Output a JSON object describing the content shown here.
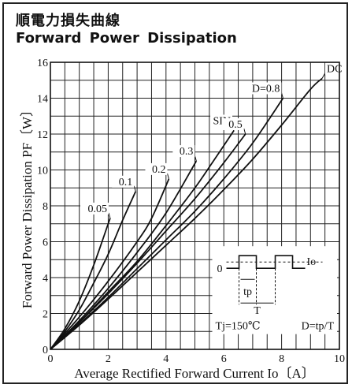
{
  "titles": {
    "japanese": "順電力損失曲線",
    "english": "Forward Power Dissipation"
  },
  "chart_data": {
    "type": "line",
    "title": "Forward Power Dissipation",
    "xlabel": "Average Rectified Forward Current Io〔A〕",
    "ylabel": "Forward Power Dissipation PF〔W〕",
    "xlim": [
      0,
      10
    ],
    "ylim": [
      0,
      16
    ],
    "x_major_ticks": [
      0,
      2,
      4,
      6,
      8,
      10
    ],
    "y_major_ticks": [
      0,
      2,
      4,
      6,
      8,
      10,
      12,
      14,
      16
    ],
    "x_minor_step": 0.5,
    "y_minor_step": 1,
    "grid": true,
    "series": [
      {
        "name": "0.05",
        "x": [
          0,
          0.5,
          1.0,
          1.5,
          2.0,
          2.07
        ],
        "y": [
          0,
          1.15,
          2.7,
          4.7,
          7.0,
          7.3
        ]
      },
      {
        "name": "0.1",
        "x": [
          0,
          0.5,
          1.0,
          1.5,
          2.0,
          2.5,
          2.95
        ],
        "y": [
          0,
          1.0,
          2.2,
          3.7,
          5.3,
          7.2,
          8.8
        ]
      },
      {
        "name": "0.2",
        "x": [
          0,
          1.0,
          2.0,
          3.0,
          3.5,
          4.1
        ],
        "y": [
          0,
          1.8,
          3.8,
          6.0,
          7.3,
          9.5
        ]
      },
      {
        "name": "0.3",
        "x": [
          0,
          1.0,
          2.0,
          3.0,
          4.0,
          5.05
        ],
        "y": [
          0,
          1.6,
          3.4,
          5.4,
          7.6,
          10.5
        ]
      },
      {
        "name": "SIN",
        "x": [
          0,
          1.0,
          2.0,
          3.0,
          4.0,
          5.0,
          5.6,
          6.35
        ],
        "y": [
          0,
          1.5,
          3.2,
          4.9,
          6.9,
          9.0,
          10.4,
          12.2
        ]
      },
      {
        "name": "0.5",
        "x": [
          0,
          1.0,
          2.0,
          3.0,
          4.0,
          5.0,
          6.0,
          6.75
        ],
        "y": [
          0,
          1.5,
          3.1,
          4.8,
          6.6,
          8.4,
          10.4,
          12.0
        ]
      },
      {
        "name": "0.8",
        "x": [
          0,
          1.0,
          2.0,
          3.0,
          4.0,
          5.0,
          6.0,
          7.0,
          8.05
        ],
        "y": [
          0,
          1.4,
          2.9,
          4.5,
          6.1,
          7.7,
          9.5,
          11.5,
          14.0
        ]
      },
      {
        "name": "DC",
        "x": [
          0,
          1.0,
          2.0,
          3.0,
          4.0,
          5.0,
          6.0,
          7.0,
          8.0,
          9.0,
          9.4
        ],
        "y": [
          0,
          1.35,
          2.8,
          4.3,
          5.8,
          7.3,
          8.9,
          10.6,
          12.5,
          14.5,
          15.1
        ]
      }
    ],
    "curve_labels": [
      {
        "text": "0.05",
        "x": 2.07,
        "y": 7.3
      },
      {
        "text": "0.1",
        "x": 2.95,
        "y": 8.8
      },
      {
        "text": "0.2",
        "x": 4.1,
        "y": 9.5
      },
      {
        "text": "0.3",
        "x": 5.05,
        "y": 10.5
      },
      {
        "text": "SIN",
        "x": 6.35,
        "y": 12.2
      },
      {
        "text": "0.5",
        "x": 6.75,
        "y": 12.0
      },
      {
        "text": "D=0.8",
        "x": 8.05,
        "y": 14.0
      },
      {
        "text": "DC",
        "x": 9.4,
        "y": 15.1
      }
    ],
    "inset": {
      "zero_label": "0",
      "io_label": "Io",
      "tp_label": "tp",
      "t_label": "T",
      "tj_label": "Tj=150℃",
      "duty_label": "D=tp/T"
    }
  }
}
